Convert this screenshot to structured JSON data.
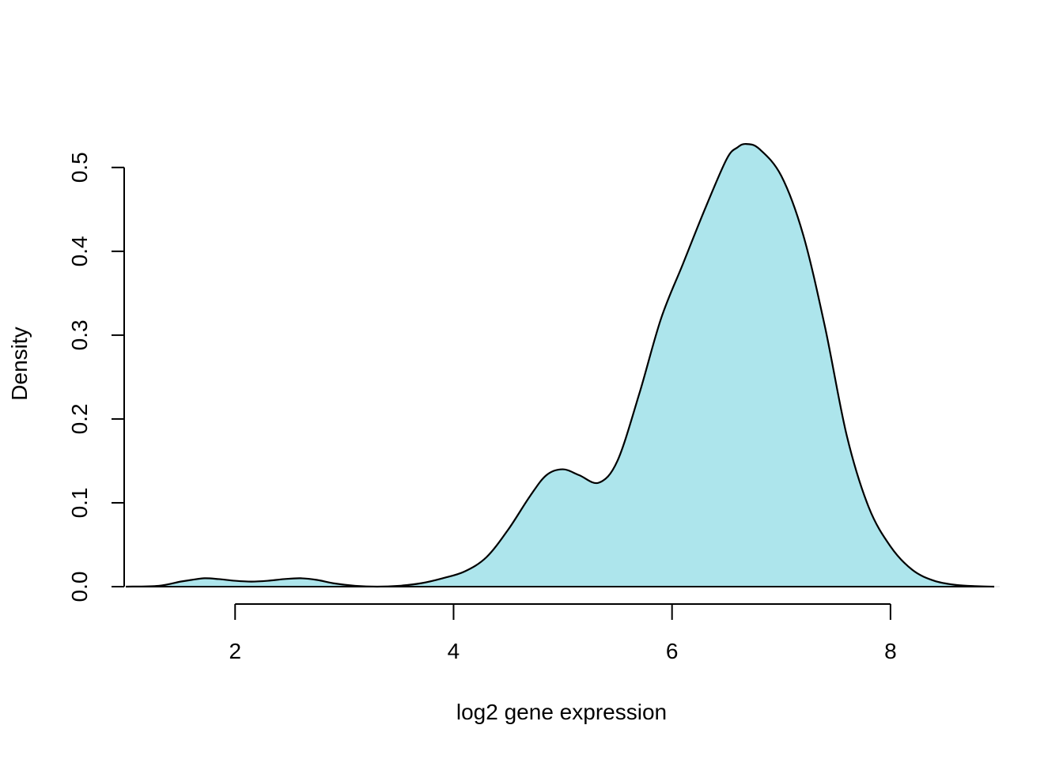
{
  "chart_data": {
    "type": "area",
    "title": "",
    "xlabel": "log2 gene expression",
    "ylabel": "Density",
    "xlim": [
      0.97,
      9.0
    ],
    "ylim": [
      0.0,
      0.53
    ],
    "x_ticks": [
      2,
      4,
      6,
      8
    ],
    "x_tick_labels": [
      "2",
      "4",
      "6",
      "8"
    ],
    "y_ticks": [
      0.0,
      0.1,
      0.2,
      0.3,
      0.4,
      0.5
    ],
    "y_tick_labels": [
      "0.0",
      "0.1",
      "0.2",
      "0.3",
      "0.4",
      "0.5"
    ],
    "grid": false,
    "legend": "none",
    "fill_color": "#ade5ec",
    "line_color": "#000000",
    "series": [
      {
        "name": "density",
        "x": [
          1.0,
          1.3,
          1.5,
          1.6,
          1.72,
          1.85,
          2.0,
          2.15,
          2.3,
          2.45,
          2.6,
          2.75,
          2.9,
          3.1,
          3.3,
          3.5,
          3.7,
          3.9,
          4.1,
          4.3,
          4.5,
          4.7,
          4.85,
          5.0,
          5.15,
          5.33,
          5.5,
          5.7,
          5.9,
          6.1,
          6.3,
          6.5,
          6.6,
          6.68,
          6.8,
          7.0,
          7.2,
          7.4,
          7.6,
          7.8,
          8.0,
          8.2,
          8.4,
          8.6,
          8.8,
          8.95
        ],
        "values": [
          0.0,
          0.001,
          0.006,
          0.008,
          0.01,
          0.009,
          0.007,
          0.006,
          0.007,
          0.009,
          0.01,
          0.008,
          0.004,
          0.001,
          0.0,
          0.001,
          0.004,
          0.01,
          0.018,
          0.035,
          0.068,
          0.108,
          0.133,
          0.14,
          0.133,
          0.124,
          0.15,
          0.23,
          0.32,
          0.385,
          0.45,
          0.51,
          0.524,
          0.528,
          0.522,
          0.49,
          0.42,
          0.31,
          0.18,
          0.095,
          0.048,
          0.02,
          0.007,
          0.002,
          0.0005,
          0.0
        ]
      }
    ]
  }
}
